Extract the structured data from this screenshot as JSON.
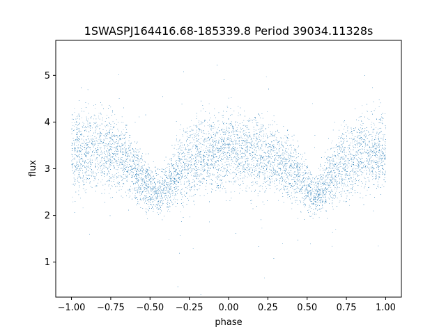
{
  "chart_data": {
    "type": "scatter",
    "title": "1SWASPJ164416.68-185339.8 Period 39034.11328s",
    "xlabel": "phase",
    "ylabel": "flux",
    "xlim": [
      -1.1,
      1.1
    ],
    "ylim": [
      0.25,
      5.75
    ],
    "x_ticks": [
      -1.0,
      -0.75,
      -0.5,
      -0.25,
      0.0,
      0.25,
      0.5,
      0.75,
      1.0
    ],
    "x_tick_labels": [
      "−1.00",
      "−0.75",
      "−0.50",
      "−0.25",
      "0.00",
      "0.25",
      "0.50",
      "0.75",
      "1.00"
    ],
    "y_ticks": [
      1,
      2,
      3,
      4,
      5
    ],
    "y_tick_labels": [
      "1",
      "2",
      "3",
      "4",
      "5"
    ],
    "grid": false,
    "series": [
      {
        "color": "#1f77b4",
        "marker_size": 0.6,
        "profile": {
          "description_phase": [
            -1.0,
            -0.85,
            -0.7,
            -0.6,
            -0.5,
            -0.45,
            -0.4,
            -0.3,
            -0.15,
            0.0,
            0.15,
            0.3,
            0.4,
            0.5,
            0.55,
            0.6,
            0.7,
            0.85,
            1.0
          ],
          "median_flux": [
            3.35,
            3.4,
            3.35,
            3.0,
            2.6,
            2.45,
            2.6,
            3.1,
            3.35,
            3.4,
            3.35,
            3.2,
            3.0,
            2.6,
            2.45,
            2.6,
            3.1,
            3.35,
            3.35
          ],
          "spread": [
            0.55,
            0.55,
            0.55,
            0.45,
            0.35,
            0.3,
            0.35,
            0.5,
            0.55,
            0.55,
            0.55,
            0.5,
            0.45,
            0.35,
            0.3,
            0.35,
            0.5,
            0.55,
            0.55
          ]
        },
        "n_points": 14000,
        "outlier_fraction": 0.02
      }
    ]
  }
}
